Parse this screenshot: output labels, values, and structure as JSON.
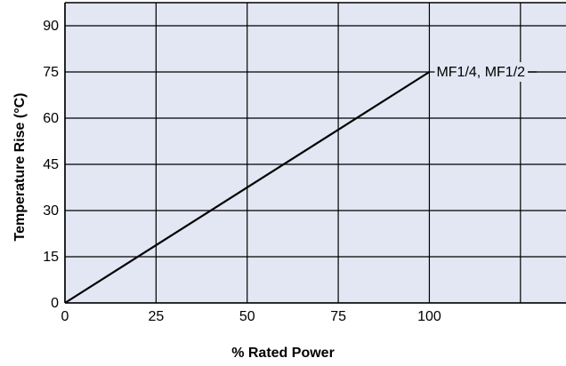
{
  "chart_data": {
    "type": "line",
    "title": "",
    "xlabel": "% Rated Power",
    "ylabel": "Temperature Rise (°C)",
    "xlim": [
      0,
      137.5
    ],
    "ylim": [
      0,
      97.5
    ],
    "x_ticks": [
      0,
      25,
      50,
      75,
      100
    ],
    "y_ticks": [
      0,
      15,
      30,
      45,
      60,
      75,
      90
    ],
    "x_gridlines": [
      0,
      25,
      50,
      75,
      100,
      125
    ],
    "y_gridlines": [
      0,
      15,
      30,
      45,
      60,
      75,
      90
    ],
    "grid": true,
    "legend": "none",
    "background_color": "#e3e6f3",
    "grid_color": "#000000",
    "line_color": "#000000",
    "series": [
      {
        "name": "MF1/4, MF1/2",
        "x": [
          0,
          100
        ],
        "y": [
          0,
          75
        ]
      }
    ]
  }
}
